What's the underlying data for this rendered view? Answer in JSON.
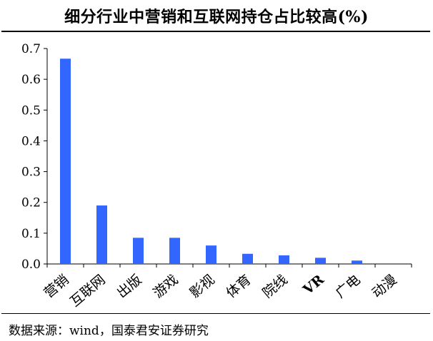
{
  "chart_data": {
    "type": "bar",
    "title": "细分行业中营销和互联网持仓占比较高(%)",
    "categories": [
      "营销",
      "互联网",
      "出版",
      "游戏",
      "影视",
      "体育",
      "院线",
      "VR",
      "广电",
      "动漫"
    ],
    "values": [
      0.667,
      0.19,
      0.085,
      0.085,
      0.06,
      0.033,
      0.028,
      0.02,
      0.011,
      0.0
    ],
    "ylim": [
      0,
      0.7
    ],
    "yticks": [
      "0.0",
      "0.1",
      "0.2",
      "0.3",
      "0.4",
      "0.5",
      "0.6",
      "0.7"
    ],
    "xlabel": "",
    "ylabel": "",
    "grid": false,
    "bar_color": "#3366ff"
  },
  "source": "数据来源：wind，国泰君安证券研究"
}
